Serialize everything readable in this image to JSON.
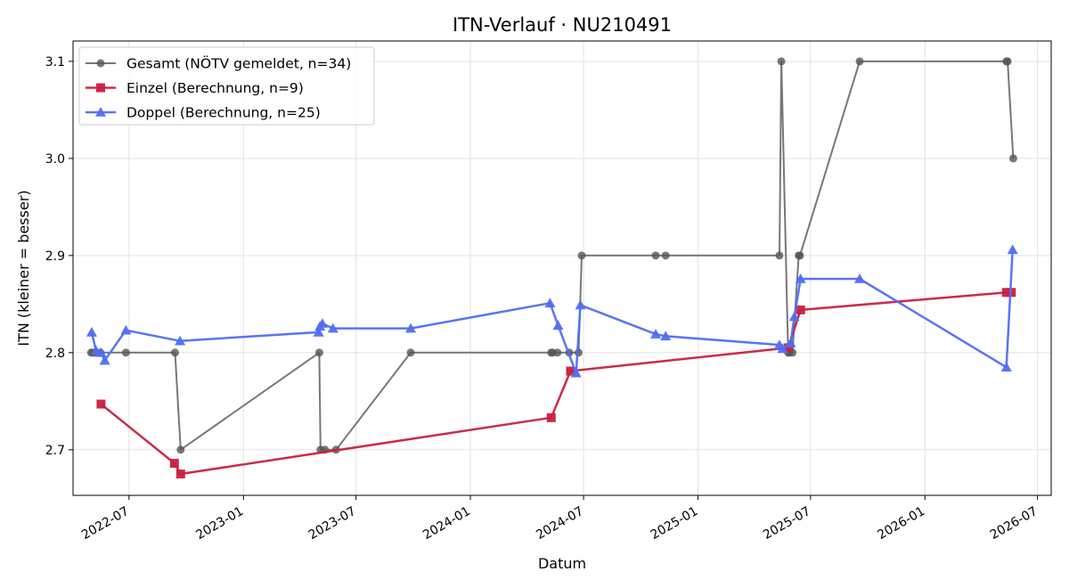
{
  "chart_data": {
    "type": "line",
    "title": "ITN-Verlauf · NU210491",
    "xlabel": "Datum",
    "ylabel": "ITN  (kleiner = besser)",
    "x_is_date": true,
    "xlim": [
      "2022-04-02",
      "2026-07-23"
    ],
    "ylim": [
      2.653,
      3.121
    ],
    "x_ticks": [
      "2022-07-01",
      "2023-01-01",
      "2023-07-01",
      "2024-01-01",
      "2024-07-01",
      "2025-01-01",
      "2025-07-01",
      "2026-01-01",
      "2026-07-01"
    ],
    "x_tick_labels": [
      "2022-07",
      "2023-01",
      "2023-07",
      "2024-01",
      "2024-07",
      "2025-01",
      "2025-07",
      "2026-01",
      "2026-07"
    ],
    "y_ticks": [
      2.7,
      2.8,
      2.9,
      3.0,
      3.1
    ],
    "y_tick_labels": [
      "2.7",
      "2.8",
      "2.9",
      "3.0",
      "3.1"
    ],
    "grid": true,
    "legend_position": "top-left",
    "series": [
      {
        "name": "Gesamt (NÖTV gemeldet, n=34)",
        "color": "#555555",
        "marker": "circle",
        "points": [
          [
            "2022-05-01",
            2.8
          ],
          [
            "2022-05-04",
            2.8
          ],
          [
            "2022-05-09",
            2.8
          ],
          [
            "2022-05-16",
            2.8
          ],
          [
            "2022-06-26",
            2.8
          ],
          [
            "2022-09-13",
            2.8
          ],
          [
            "2022-09-22",
            2.7
          ],
          [
            "2023-05-03",
            2.8
          ],
          [
            "2023-05-05",
            2.7
          ],
          [
            "2023-05-12",
            2.7
          ],
          [
            "2023-05-30",
            2.7
          ],
          [
            "2023-09-27",
            2.8
          ],
          [
            "2024-05-10",
            2.8
          ],
          [
            "2024-05-12",
            2.8
          ],
          [
            "2024-05-20",
            2.8
          ],
          [
            "2024-06-08",
            2.8
          ],
          [
            "2024-06-23",
            2.8
          ],
          [
            "2024-06-28",
            2.9
          ],
          [
            "2024-10-25",
            2.9
          ],
          [
            "2024-11-10",
            2.9
          ],
          [
            "2025-05-12",
            2.9
          ],
          [
            "2025-05-15",
            3.1
          ],
          [
            "2025-05-26",
            2.8
          ],
          [
            "2025-05-28",
            2.8
          ],
          [
            "2025-06-02",
            2.8
          ],
          [
            "2025-06-12",
            2.9
          ],
          [
            "2025-06-14",
            2.9
          ],
          [
            "2025-09-18",
            3.1
          ],
          [
            "2026-05-12",
            3.1
          ],
          [
            "2026-05-14",
            3.1
          ],
          [
            "2026-05-23",
            3.0
          ]
        ]
      },
      {
        "name": "Einzel (Berechnung, n=9)",
        "color": "#c8203f",
        "marker": "square",
        "points": [
          [
            "2022-05-17",
            2.747
          ],
          [
            "2022-09-12",
            2.686
          ],
          [
            "2022-09-22",
            2.675
          ],
          [
            "2024-05-10",
            2.733
          ],
          [
            "2024-06-10",
            2.781
          ],
          [
            "2025-05-26",
            2.805
          ],
          [
            "2025-06-15",
            2.844
          ],
          [
            "2026-05-12",
            2.862
          ],
          [
            "2026-05-20",
            2.862
          ]
        ]
      },
      {
        "name": "Doppel (Berechnung, n=25)",
        "color": "#4f6ef2",
        "marker": "triangle",
        "points": [
          [
            "2022-05-02",
            2.821
          ],
          [
            "2022-05-09",
            2.802
          ],
          [
            "2022-05-17",
            2.8
          ],
          [
            "2022-05-23",
            2.792
          ],
          [
            "2022-06-26",
            2.823
          ],
          [
            "2022-09-21",
            2.812
          ],
          [
            "2023-05-02",
            2.821
          ],
          [
            "2023-05-04",
            2.827
          ],
          [
            "2023-05-08",
            2.83
          ],
          [
            "2023-05-25",
            2.825
          ],
          [
            "2023-09-27",
            2.825
          ],
          [
            "2024-05-08",
            2.851
          ],
          [
            "2024-05-21",
            2.828
          ],
          [
            "2024-06-19",
            2.779
          ],
          [
            "2024-06-26",
            2.849
          ],
          [
            "2024-10-25",
            2.819
          ],
          [
            "2024-11-10",
            2.817
          ],
          [
            "2025-05-12",
            2.808
          ],
          [
            "2025-05-17",
            2.804
          ],
          [
            "2025-06-05",
            2.837
          ],
          [
            "2025-06-15",
            2.876
          ],
          [
            "2025-09-18",
            2.876
          ],
          [
            "2026-05-12",
            2.785
          ],
          [
            "2026-05-22",
            2.906
          ],
          [
            "2025-05-30",
            2.81
          ]
        ]
      }
    ]
  }
}
